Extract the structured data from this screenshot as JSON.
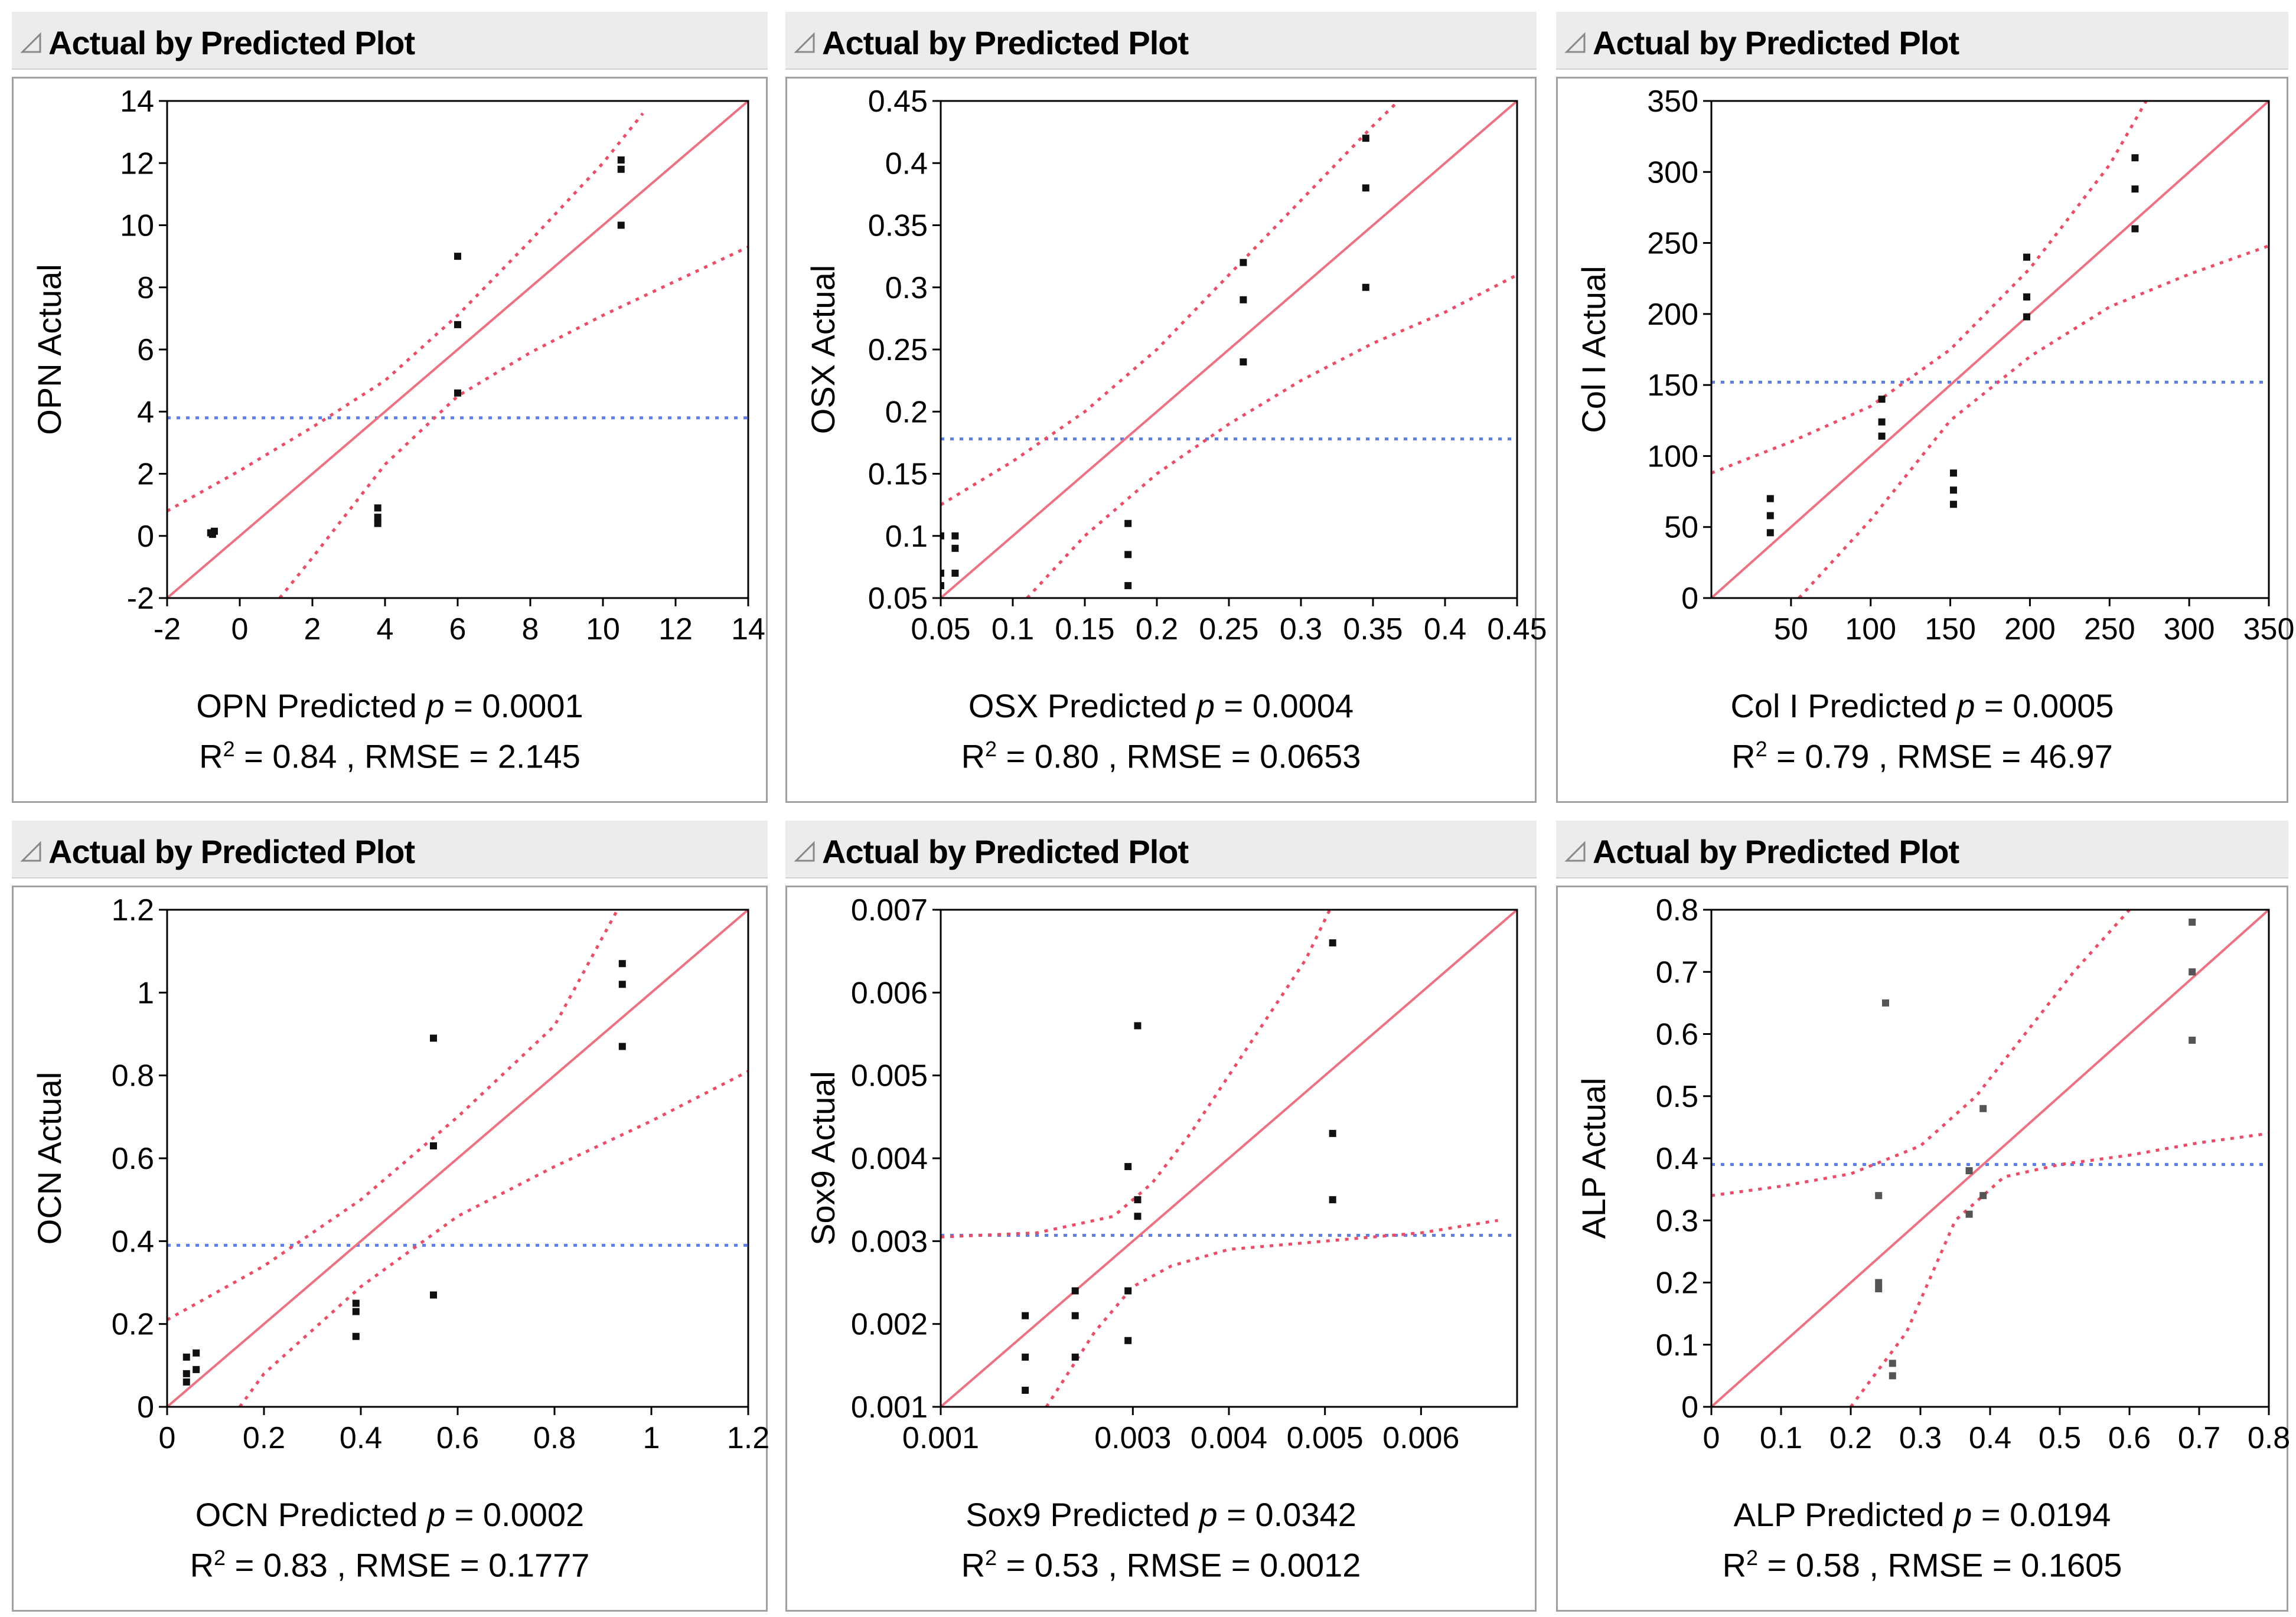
{
  "panels": [
    {
      "header": "Actual by Predicted Plot",
      "chart_data": {
        "type": "scatter",
        "title": "Actual by Predicted Plot",
        "xlabel": "OPN Predicted",
        "ylabel": "OPN Actual",
        "xlim": [
          -2,
          14
        ],
        "ylim": [
          -2,
          14
        ],
        "xticks": [
          "-2",
          "0",
          "2",
          "4",
          "6",
          "8",
          "10",
          "12",
          "14"
        ],
        "yticks": [
          "-2",
          "0",
          "2",
          "4",
          "6",
          "8",
          "10",
          "12",
          "14"
        ],
        "mean_y": 3.8,
        "points": [
          [
            -0.8,
            0.1
          ],
          [
            -0.7,
            0.15
          ],
          [
            -0.75,
            0.05
          ],
          [
            3.8,
            0.9
          ],
          [
            3.8,
            0.6
          ],
          [
            3.8,
            0.4
          ],
          [
            6.0,
            9.0
          ],
          [
            6.0,
            6.8
          ],
          [
            6.0,
            4.6
          ],
          [
            10.5,
            12.1
          ],
          [
            10.5,
            11.8
          ],
          [
            10.5,
            10.0
          ]
        ],
        "ci_upper": [
          [
            -2,
            0.8
          ],
          [
            0,
            2.1
          ],
          [
            2,
            3.5
          ],
          [
            4,
            5.0
          ],
          [
            6,
            7.1
          ],
          [
            8,
            9.5
          ],
          [
            10,
            12.0
          ],
          [
            11.1,
            13.6
          ]
        ],
        "ci_lower": [
          [
            1.1,
            -2
          ],
          [
            2,
            -0.7
          ],
          [
            4,
            2.3
          ],
          [
            6,
            4.5
          ],
          [
            8,
            5.9
          ],
          [
            10,
            7.1
          ],
          [
            12,
            8.2
          ],
          [
            14,
            9.3
          ]
        ]
      },
      "caption": "OPN Predicted",
      "p_label": "p",
      "p_value": " = 0.0001",
      "r_label": "R",
      "r_sup": "2",
      "stats": " = 0.84 , RMSE = 2.145"
    },
    {
      "header": "Actual by Predicted Plot",
      "chart_data": {
        "type": "scatter",
        "title": "Actual by Predicted Plot",
        "xlabel": "OSX Predicted",
        "ylabel": "OSX Actual",
        "xlim": [
          0.05,
          0.45
        ],
        "ylim": [
          0.05,
          0.45
        ],
        "xticks": [
          "0.05",
          "0.1",
          "0.15",
          "0.2",
          "0.25",
          "0.3",
          "0.35",
          "0.4",
          "0.45"
        ],
        "yticks": [
          "0.05",
          "0.1",
          "0.15",
          "0.2",
          "0.25",
          "0.3",
          "0.35",
          "0.4",
          "0.45"
        ],
        "mean_y": 0.178,
        "points": [
          [
            0.05,
            0.1
          ],
          [
            0.05,
            0.07
          ],
          [
            0.05,
            0.06
          ],
          [
            0.06,
            0.1
          ],
          [
            0.06,
            0.09
          ],
          [
            0.06,
            0.07
          ],
          [
            0.18,
            0.11
          ],
          [
            0.18,
            0.085
          ],
          [
            0.18,
            0.06
          ],
          [
            0.26,
            0.32
          ],
          [
            0.26,
            0.29
          ],
          [
            0.26,
            0.24
          ],
          [
            0.345,
            0.42
          ],
          [
            0.345,
            0.38
          ],
          [
            0.345,
            0.3
          ]
        ],
        "ci_upper": [
          [
            0.05,
            0.125
          ],
          [
            0.1,
            0.16
          ],
          [
            0.15,
            0.2
          ],
          [
            0.2,
            0.25
          ],
          [
            0.25,
            0.31
          ],
          [
            0.3,
            0.37
          ],
          [
            0.35,
            0.43
          ],
          [
            0.365,
            0.447
          ]
        ],
        "ci_lower": [
          [
            0.11,
            0.05
          ],
          [
            0.15,
            0.1
          ],
          [
            0.2,
            0.15
          ],
          [
            0.25,
            0.19
          ],
          [
            0.3,
            0.225
          ],
          [
            0.35,
            0.255
          ],
          [
            0.4,
            0.28
          ],
          [
            0.45,
            0.31
          ]
        ]
      },
      "caption": "OSX Predicted",
      "p_label": "p",
      "p_value": " = 0.0004",
      "r_label": "R",
      "r_sup": "2",
      "stats": " = 0.80 , RMSE = 0.0653"
    },
    {
      "header": "Actual by Predicted Plot",
      "chart_data": {
        "type": "scatter",
        "title": "Actual by Predicted Plot",
        "xlabel": "Col I Predicted",
        "ylabel": "Col I Actual",
        "xlim": [
          0,
          350
        ],
        "ylim": [
          0,
          350
        ],
        "xticks": [
          "50",
          "100",
          "150",
          "200",
          "250",
          "300",
          "350"
        ],
        "yticks": [
          "0",
          "50",
          "100",
          "150",
          "200",
          "250",
          "300",
          "350"
        ],
        "mean_y": 152,
        "points": [
          [
            37,
            70
          ],
          [
            37,
            58
          ],
          [
            37,
            46
          ],
          [
            107,
            140
          ],
          [
            107,
            124
          ],
          [
            107,
            114
          ],
          [
            152,
            88
          ],
          [
            152,
            76
          ],
          [
            152,
            66
          ],
          [
            198,
            240
          ],
          [
            198,
            212
          ],
          [
            198,
            198
          ],
          [
            266,
            310
          ],
          [
            266,
            288
          ],
          [
            266,
            260
          ]
        ],
        "ci_upper": [
          [
            0,
            88
          ],
          [
            50,
            110
          ],
          [
            100,
            135
          ],
          [
            150,
            175
          ],
          [
            200,
            232
          ],
          [
            250,
            305
          ],
          [
            273,
            350
          ]
        ],
        "ci_lower": [
          [
            55,
            0
          ],
          [
            100,
            55
          ],
          [
            150,
            125
          ],
          [
            200,
            170
          ],
          [
            250,
            205
          ],
          [
            300,
            228
          ],
          [
            350,
            248
          ]
        ]
      },
      "caption": "Col I Predicted",
      "p_label": "p",
      "p_value": " = 0.0005",
      "r_label": "R",
      "r_sup": "2",
      "stats": " = 0.79 , RMSE = 46.97"
    },
    {
      "header": "Actual by Predicted Plot",
      "chart_data": {
        "type": "scatter",
        "title": "Actual by Predicted Plot",
        "xlabel": "OCN Predicted",
        "ylabel": "OCN Actual",
        "xlim": [
          0,
          1.2
        ],
        "ylim": [
          0,
          1.2
        ],
        "xticks": [
          "0",
          "0.2",
          "0.4",
          "0.6",
          "0.8",
          "1",
          "1.2"
        ],
        "yticks": [
          "0",
          "0.2",
          "0.4",
          "0.6",
          "0.8",
          "1",
          "1.2"
        ],
        "mean_y": 0.39,
        "points": [
          [
            0.04,
            0.12
          ],
          [
            0.04,
            0.08
          ],
          [
            0.04,
            0.06
          ],
          [
            0.06,
            0.13
          ],
          [
            0.06,
            0.09
          ],
          [
            0.39,
            0.25
          ],
          [
            0.39,
            0.23
          ],
          [
            0.39,
            0.17
          ],
          [
            0.55,
            0.89
          ],
          [
            0.55,
            0.63
          ],
          [
            0.55,
            0.27
          ],
          [
            0.94,
            1.07
          ],
          [
            0.94,
            1.02
          ],
          [
            0.94,
            0.87
          ]
        ],
        "ci_upper": [
          [
            0,
            0.21
          ],
          [
            0.2,
            0.34
          ],
          [
            0.4,
            0.5
          ],
          [
            0.6,
            0.7
          ],
          [
            0.8,
            0.92
          ],
          [
            0.93,
            1.2
          ]
        ],
        "ci_lower": [
          [
            0.15,
            0
          ],
          [
            0.2,
            0.08
          ],
          [
            0.4,
            0.29
          ],
          [
            0.6,
            0.46
          ],
          [
            0.8,
            0.58
          ],
          [
            1.0,
            0.69
          ],
          [
            1.2,
            0.81
          ]
        ]
      },
      "caption": "OCN Predicted",
      "p_label": "p",
      "p_value": " = 0.0002",
      "r_label": "R",
      "r_sup": "2",
      "stats": " = 0.83 , RMSE = 0.1777"
    },
    {
      "header": "Actual by Predicted Plot",
      "chart_data": {
        "type": "scatter",
        "title": "Actual by Predicted Plot",
        "xlabel": "Sox9 Predicted",
        "ylabel": "Sox9 Actual",
        "xlim": [
          0.001,
          0.007
        ],
        "ylim": [
          0.001,
          0.007
        ],
        "xticks": [
          "0.001",
          "0.003",
          "0.004",
          "0.005",
          "0.006"
        ],
        "xtick_values": [
          0.001,
          0.003,
          0.004,
          0.005,
          0.006
        ],
        "yticks": [
          "0.001",
          "0.002",
          "0.003",
          "0.004",
          "0.005",
          "0.006",
          "0.007"
        ],
        "mean_y": 0.00307,
        "points": [
          [
            0.00188,
            0.0021
          ],
          [
            0.00188,
            0.0016
          ],
          [
            0.00188,
            0.0012
          ],
          [
            0.0024,
            0.0024
          ],
          [
            0.0024,
            0.0021
          ],
          [
            0.0024,
            0.0016
          ],
          [
            0.00295,
            0.0039
          ],
          [
            0.00295,
            0.0024
          ],
          [
            0.00295,
            0.0018
          ],
          [
            0.00305,
            0.0056
          ],
          [
            0.00305,
            0.0035
          ],
          [
            0.00305,
            0.0033
          ],
          [
            0.00508,
            0.0066
          ],
          [
            0.00508,
            0.0043
          ],
          [
            0.00508,
            0.0035
          ]
        ],
        "ci_upper": [
          [
            0.001,
            0.00305
          ],
          [
            0.002,
            0.0031
          ],
          [
            0.0028,
            0.0033
          ],
          [
            0.0032,
            0.0037
          ],
          [
            0.0036,
            0.0043
          ],
          [
            0.004,
            0.005
          ],
          [
            0.0044,
            0.0057
          ],
          [
            0.0048,
            0.0064
          ],
          [
            0.00505,
            0.007
          ]
        ],
        "ci_lower": [
          [
            0.0021,
            0.001
          ],
          [
            0.0026,
            0.0019
          ],
          [
            0.003,
            0.00245
          ],
          [
            0.0034,
            0.0027
          ],
          [
            0.004,
            0.0029
          ],
          [
            0.005,
            0.003
          ],
          [
            0.006,
            0.0031
          ],
          [
            0.0068,
            0.00325
          ]
        ]
      },
      "caption": "Sox9 Predicted",
      "p_label": "p",
      "p_value": " = 0.0342",
      "r_label": "R",
      "r_sup": "2",
      "stats": " = 0.53 , RMSE = 0.0012"
    },
    {
      "header": "Actual by Predicted Plot",
      "chart_data": {
        "type": "scatter",
        "title": "Actual by Predicted Plot",
        "xlabel": "ALP Predicted",
        "ylabel": "ALP Actual",
        "xlim": [
          0,
          0.8
        ],
        "ylim": [
          0,
          0.8
        ],
        "xticks": [
          "0",
          "0.1",
          "0.2",
          "0.3",
          "0.4",
          "0.5",
          "0.6",
          "0.7",
          "0.8"
        ],
        "yticks": [
          "0",
          "0.1",
          "0.2",
          "0.3",
          "0.4",
          "0.5",
          "0.6",
          "0.7",
          "0.8"
        ],
        "mean_y": 0.39,
        "points": [
          [
            0.25,
            0.65
          ],
          [
            0.24,
            0.34
          ],
          [
            0.24,
            0.2
          ],
          [
            0.24,
            0.19
          ],
          [
            0.26,
            0.07
          ],
          [
            0.26,
            0.05
          ],
          [
            0.37,
            0.31
          ],
          [
            0.37,
            0.38
          ],
          [
            0.39,
            0.48
          ],
          [
            0.39,
            0.34
          ],
          [
            0.69,
            0.78
          ],
          [
            0.69,
            0.7
          ],
          [
            0.69,
            0.59
          ]
        ],
        "ci_upper": [
          [
            0,
            0.34
          ],
          [
            0.1,
            0.355
          ],
          [
            0.2,
            0.375
          ],
          [
            0.3,
            0.42
          ],
          [
            0.38,
            0.5
          ],
          [
            0.45,
            0.6
          ],
          [
            0.52,
            0.7
          ],
          [
            0.6,
            0.8
          ]
        ],
        "ci_lower": [
          [
            0.2,
            0
          ],
          [
            0.28,
            0.12
          ],
          [
            0.35,
            0.3
          ],
          [
            0.42,
            0.37
          ],
          [
            0.5,
            0.39
          ],
          [
            0.6,
            0.405
          ],
          [
            0.7,
            0.425
          ],
          [
            0.8,
            0.44
          ]
        ]
      },
      "caption": "ALP Predicted",
      "p_label": "p",
      "p_value": " = 0.0194",
      "r_label": "R",
      "r_sup": "2",
      "stats": " = 0.58 , RMSE = 0.1605"
    }
  ]
}
